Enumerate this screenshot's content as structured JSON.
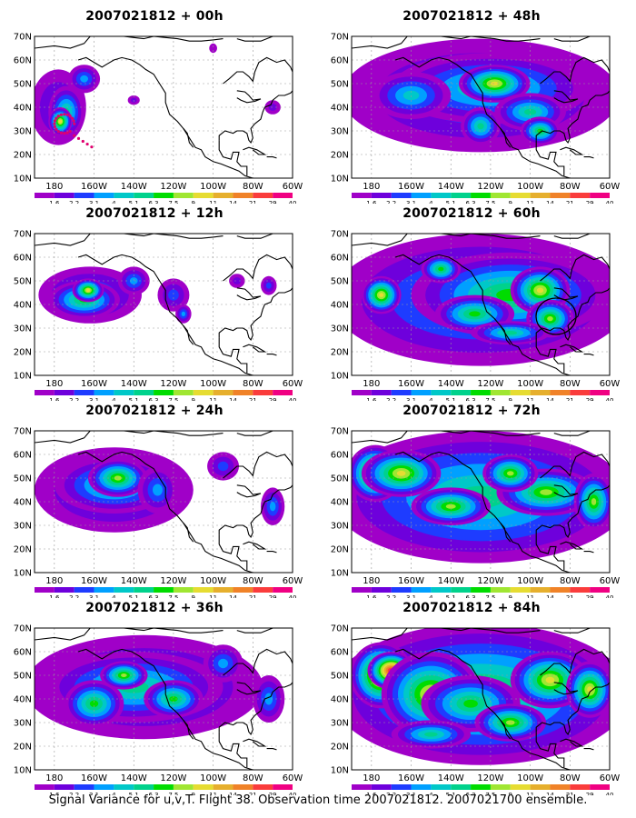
{
  "panels": [
    {
      "title": "2007021812 + 00h",
      "lead_h": 0
    },
    {
      "title": "2007021812 + 12h",
      "lead_h": 12
    },
    {
      "title": "2007021812 + 24h",
      "lead_h": 24
    },
    {
      "title": "2007021812 + 36h",
      "lead_h": 36
    },
    {
      "title": "2007021812 + 48h",
      "lead_h": 48
    },
    {
      "title": "2007021812 + 60h",
      "lead_h": 60
    },
    {
      "title": "2007021812 + 72h",
      "lead_h": 72
    },
    {
      "title": "2007021812 + 84h",
      "lead_h": 84
    }
  ],
  "map": {
    "lat_labels": [
      "70N",
      "60N",
      "50N",
      "40N",
      "30N",
      "20N",
      "10N"
    ],
    "lon_labels": [
      "180",
      "160W",
      "140W",
      "120W",
      "100W",
      "80W",
      "60W"
    ],
    "extent": {
      "lon_min": -190,
      "lon_max": -60,
      "lat_min": 10,
      "lat_max": 70
    }
  },
  "scale": {
    "labels": [
      "1.6",
      "2.2",
      "3.1",
      "4",
      "5.1",
      "6.3",
      "7.5",
      "9",
      "11",
      "14",
      "21",
      "29",
      "40"
    ],
    "colors": [
      "#a000c8",
      "#6e00dc",
      "#1e3cff",
      "#00a0ff",
      "#00c8c8",
      "#00d28c",
      "#00dc00",
      "#a0e632",
      "#e6dc32",
      "#e6af2d",
      "#f08228",
      "#fa3c3c",
      "#f00082"
    ]
  },
  "caption": "Signal Variance for u,v,T. Flight 38. Observation time 2007021812. 2007021700 ensemble."
}
